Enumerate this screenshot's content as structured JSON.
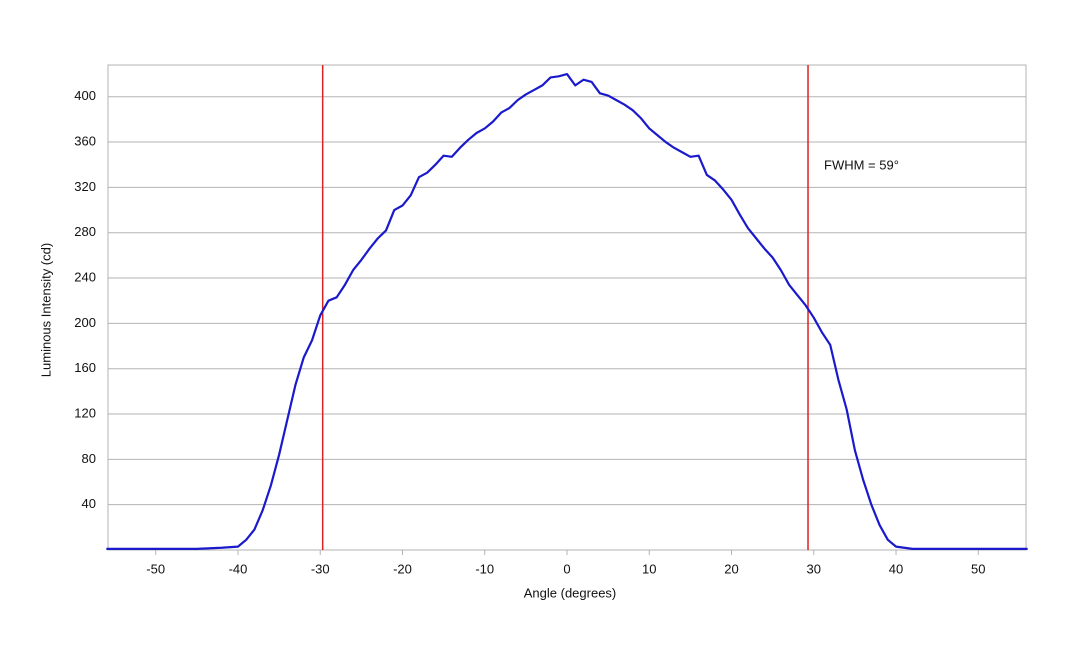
{
  "chart_data": {
    "type": "line",
    "x_label": "Angle (degrees)",
    "y_label": "Luminous Intensity (cd)",
    "annotation": "FWHM = 59°",
    "x": [
      -56,
      -50,
      -45,
      -42,
      -40,
      -39,
      -38,
      -37,
      -36,
      -35,
      -34,
      -33,
      -32,
      -31,
      -30,
      -29,
      -28,
      -27,
      -26,
      -25,
      -24,
      -23,
      -22,
      -21,
      -20,
      -19,
      -18,
      -17,
      -16,
      -15,
      -14,
      -13,
      -12,
      -11,
      -10,
      -9,
      -8,
      -7,
      -6,
      -5,
      -4,
      -3,
      -2,
      -1,
      0,
      1,
      2,
      3,
      4,
      5,
      6,
      7,
      8,
      9,
      10,
      11,
      12,
      13,
      14,
      15,
      16,
      17,
      18,
      19,
      20,
      21,
      22,
      23,
      24,
      25,
      26,
      27,
      28,
      29,
      30,
      31,
      32,
      33,
      34,
      35,
      36,
      37,
      38,
      39,
      40,
      42,
      45,
      50,
      56
    ],
    "series": [
      {
        "color": "#1a1acc",
        "values": [
          1,
          1,
          1,
          2,
          3,
          9,
          18,
          35,
          57,
          84,
          115,
          146,
          170,
          185,
          207,
          220,
          223,
          234,
          247,
          256,
          266,
          275,
          282,
          300,
          304,
          313,
          329,
          333,
          340,
          348,
          347,
          355,
          362,
          368,
          372,
          378,
          386,
          390,
          397,
          402,
          406,
          410,
          417,
          418,
          420,
          410,
          415,
          413,
          403,
          401,
          397,
          393,
          388,
          381,
          372,
          366,
          360,
          355,
          351,
          347,
          348,
          331,
          326,
          318,
          309,
          296,
          284,
          275,
          266,
          258,
          247,
          234,
          225,
          216,
          205,
          192,
          181,
          150,
          124,
          88,
          62,
          40,
          22,
          9,
          3,
          1,
          1,
          1,
          1
        ]
      }
    ],
    "vlines": [
      -29.7,
      29.3
    ],
    "vline_color": "#dd2222",
    "xlim": [
      -55.8,
      55.8
    ],
    "ylim": [
      0,
      428
    ],
    "xticks": [
      -50,
      -40,
      -30,
      -20,
      -10,
      0,
      10,
      20,
      30,
      40,
      50
    ],
    "yticks": [
      40,
      80,
      120,
      160,
      200,
      240,
      280,
      320,
      360,
      400
    ],
    "grid": true
  }
}
